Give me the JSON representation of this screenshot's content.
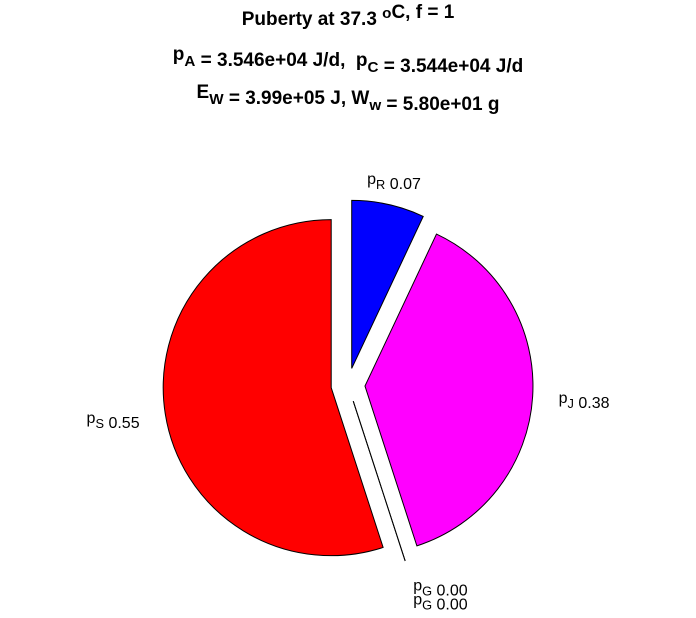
{
  "chart_data": {
    "type": "pie",
    "title": [
      [
        "Puberty at 37.3 ",
        {
          "sup": "o"
        },
        "C, f = 1"
      ],
      [
        "p",
        {
          "sub": "A"
        },
        " = 3.546e+04 J/d,  p",
        {
          "sub": "C"
        },
        " = 3.544e+04 J/d"
      ],
      [
        "E",
        {
          "sub": "W"
        },
        " = 3.99e+05 J, W",
        {
          "sub": "w"
        },
        " = 5.80e+01 g"
      ]
    ],
    "categories": [
      [
        "p",
        {
          "sub": "R"
        }
      ],
      [
        "p",
        {
          "sub": "J"
        }
      ],
      [
        "p",
        {
          "sub": "G"
        }
      ],
      [
        "p",
        {
          "sub": "G"
        }
      ],
      [
        "p",
        {
          "sub": "S"
        }
      ]
    ],
    "values": [
      0.07,
      0.38,
      0.0,
      0.0,
      0.55
    ],
    "value_labels": [
      "0.07",
      "0.38",
      "0.00",
      "0.00",
      "0.55"
    ],
    "colors": [
      "#0000ff",
      "#ff00ff",
      "#ff0080",
      "#ff0040",
      "#ff0000"
    ],
    "explode": true
  }
}
